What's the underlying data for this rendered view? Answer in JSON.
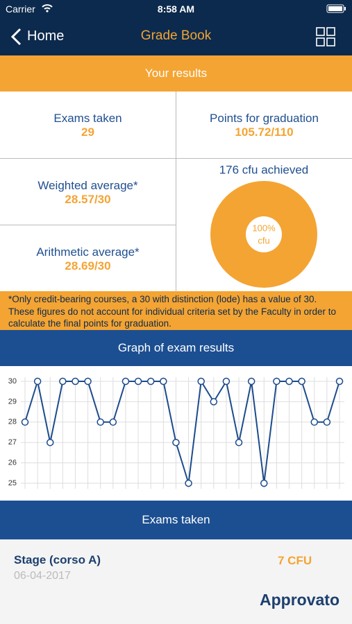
{
  "status_bar": {
    "carrier": "Carrier",
    "time": "8:58 AM"
  },
  "nav": {
    "back": "Home",
    "title": "Grade Book"
  },
  "results": {
    "header": "Your results",
    "exams_taken": {
      "label": "Exams taken",
      "value": "29"
    },
    "points": {
      "label": "Points for graduation",
      "value": "105.72/110"
    },
    "weighted": {
      "label": "Weighted average*",
      "value": "28.57/30"
    },
    "arithmetic": {
      "label": "Arithmetic average*",
      "value": "28.69/30"
    }
  },
  "footnote": "*Only credit-bearing courses, a 30 with distinction (lode) has a value of 30. These figures do not account for individual criteria set by the Faculty in order to calculate the final points for graduation.",
  "graph_header": "Graph of exam results",
  "chart_data": [
    {
      "type": "line",
      "color": "#1c4b8c",
      "categories": [
        null,
        null,
        null,
        null,
        null,
        null,
        null,
        null,
        null,
        null,
        null,
        null,
        null,
        null,
        null,
        null,
        null,
        null,
        null,
        null,
        null,
        null,
        null,
        null,
        null,
        null
      ],
      "values": [
        28,
        30,
        27,
        30,
        30,
        30,
        28,
        28,
        30,
        30,
        30,
        30,
        27,
        25,
        30,
        29,
        30,
        27,
        30,
        25,
        30,
        30,
        30,
        28,
        28,
        30
      ],
      "ylim": [
        25,
        30
      ],
      "yticks": [
        25,
        26,
        27,
        28,
        29,
        30
      ],
      "grid": true
    },
    {
      "type": "pie",
      "title": "176 cfu achieved",
      "values": [
        100
      ],
      "value_labels": [
        "100%"
      ],
      "center_label": "cfu",
      "color": "#f4a433"
    }
  ],
  "exams": {
    "header": "Exams taken",
    "items": [
      {
        "name": "Stage (corso A)",
        "date": "06-04-2017",
        "credits": "7 CFU",
        "status": "Approvato"
      }
    ]
  }
}
